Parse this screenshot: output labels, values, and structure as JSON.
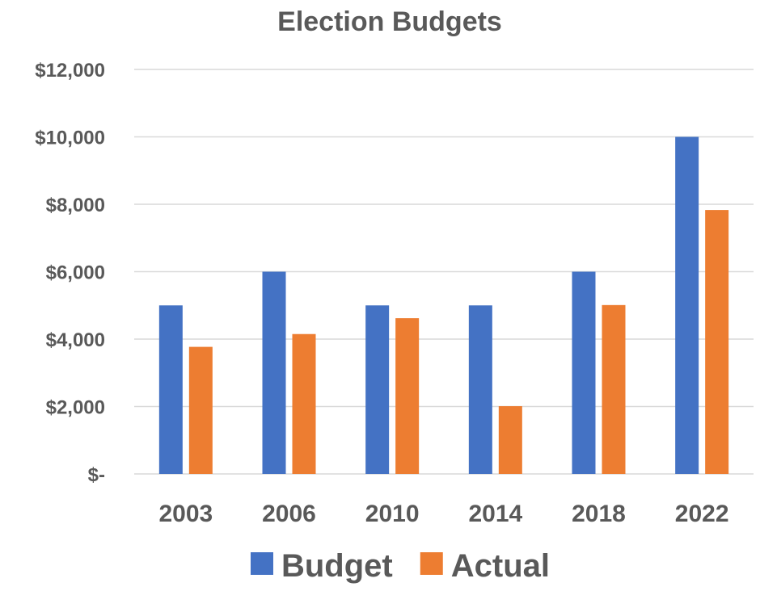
{
  "chart_data": {
    "type": "bar",
    "title": "Election Budgets",
    "xlabel": "",
    "ylabel": "",
    "categories": [
      "2003",
      "2006",
      "2010",
      "2014",
      "2018",
      "2022"
    ],
    "series": [
      {
        "name": "Budget",
        "color": "#4472C4",
        "values": [
          5000,
          6000,
          5000,
          5000,
          6000,
          10000
        ]
      },
      {
        "name": "Actual",
        "color": "#ED7D31",
        "values": [
          3770,
          4150,
          4620,
          2010,
          5010,
          7830
        ]
      }
    ],
    "ylim": [
      0,
      12000
    ],
    "y_ticks": [
      {
        "value": 0,
        "label": "$-"
      },
      {
        "value": 2000,
        "label": "$2,000"
      },
      {
        "value": 4000,
        "label": "$4,000"
      },
      {
        "value": 6000,
        "label": "$6,000"
      },
      {
        "value": 8000,
        "label": "$8,000"
      },
      {
        "value": 10000,
        "label": "$10,000"
      },
      {
        "value": 12000,
        "label": "$12,000"
      }
    ],
    "grid": true,
    "legend_position": "bottom"
  }
}
